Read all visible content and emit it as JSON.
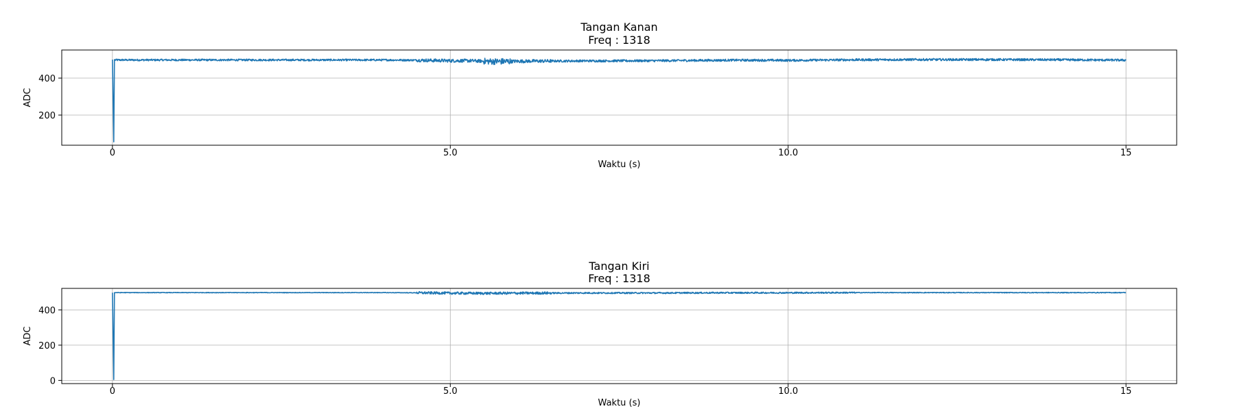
{
  "chart_data": [
    {
      "type": "line",
      "title": "Tangan Kanan",
      "subtitle": "Freq : 1318",
      "xlabel": "Waktu (s)",
      "ylabel": "ADC",
      "xlim": [
        -0.75,
        15.75
      ],
      "ylim": [
        37,
        552
      ],
      "xticks": [
        0,
        5.0,
        10.0,
        15
      ],
      "xtick_labels": [
        "0",
        "5.0",
        "10.0",
        "15"
      ],
      "yticks": [
        200,
        400
      ],
      "ytick_labels": [
        "200",
        "400"
      ],
      "grid": true,
      "color": "#1f77b4",
      "series": [
        {
          "x": [
            0,
            0.02,
            0.03,
            0.04,
            1.0,
            2.0,
            3.0,
            4.0,
            4.5,
            5.0,
            5.3,
            5.6,
            5.8,
            6.2,
            7.0,
            8.0,
            8.8,
            9.2,
            10.0,
            11.0,
            12.0,
            13.0,
            14.0,
            15.0
          ],
          "y": [
            500,
            55,
            500,
            498,
            498,
            498,
            498,
            498,
            497,
            494,
            494,
            490,
            490,
            492,
            493,
            494,
            496,
            497,
            496,
            499,
            500,
            500,
            499,
            497
          ]
        }
      ]
    },
    {
      "type": "line",
      "title": "Tangan Kiri",
      "subtitle": "Freq :  1318",
      "xlabel": "Waktu (s)",
      "ylabel": "ADC",
      "xlim": [
        -0.75,
        15.75
      ],
      "ylim": [
        -18,
        522
      ],
      "xticks": [
        0,
        5.0,
        10.0,
        15
      ],
      "xtick_labels": [
        "0",
        "5.0",
        "10.0",
        "15"
      ],
      "yticks": [
        0,
        200,
        400
      ],
      "ytick_labels": [
        "0",
        "200",
        "400"
      ],
      "grid": true,
      "color": "#1f77b4",
      "series": [
        {
          "x": [
            0,
            0.02,
            0.03,
            0.04,
            1.0,
            2.0,
            3.0,
            4.0,
            4.5,
            5.0,
            5.5,
            6.0,
            7.0,
            8.0,
            9.0,
            10.0,
            11.0,
            12.0,
            13.0,
            14.0,
            15.0
          ],
          "y": [
            498,
            5,
            498,
            498,
            498,
            498,
            498,
            498,
            497,
            495,
            494,
            495,
            496,
            496,
            497,
            497,
            498,
            498,
            498,
            498,
            498
          ]
        }
      ]
    }
  ]
}
